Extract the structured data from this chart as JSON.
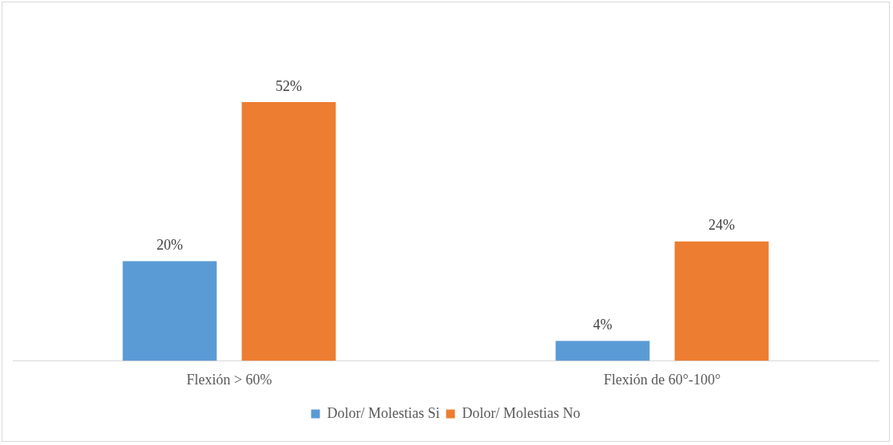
{
  "chart_data": {
    "type": "bar",
    "categories": [
      "Flexión > 60%",
      "Flexión de 60°-100°"
    ],
    "series": [
      {
        "name": "Dolor/ Molestias Si",
        "color": "#5b9bd5",
        "values": [
          20,
          4
        ],
        "value_labels": [
          "20%",
          "4%"
        ]
      },
      {
        "name": "Dolor/ Molestias No",
        "color": "#ed7d31",
        "values": [
          52,
          24
        ],
        "value_labels": [
          "52%",
          "24%"
        ]
      }
    ],
    "legend": "bottom",
    "grid": false
  }
}
